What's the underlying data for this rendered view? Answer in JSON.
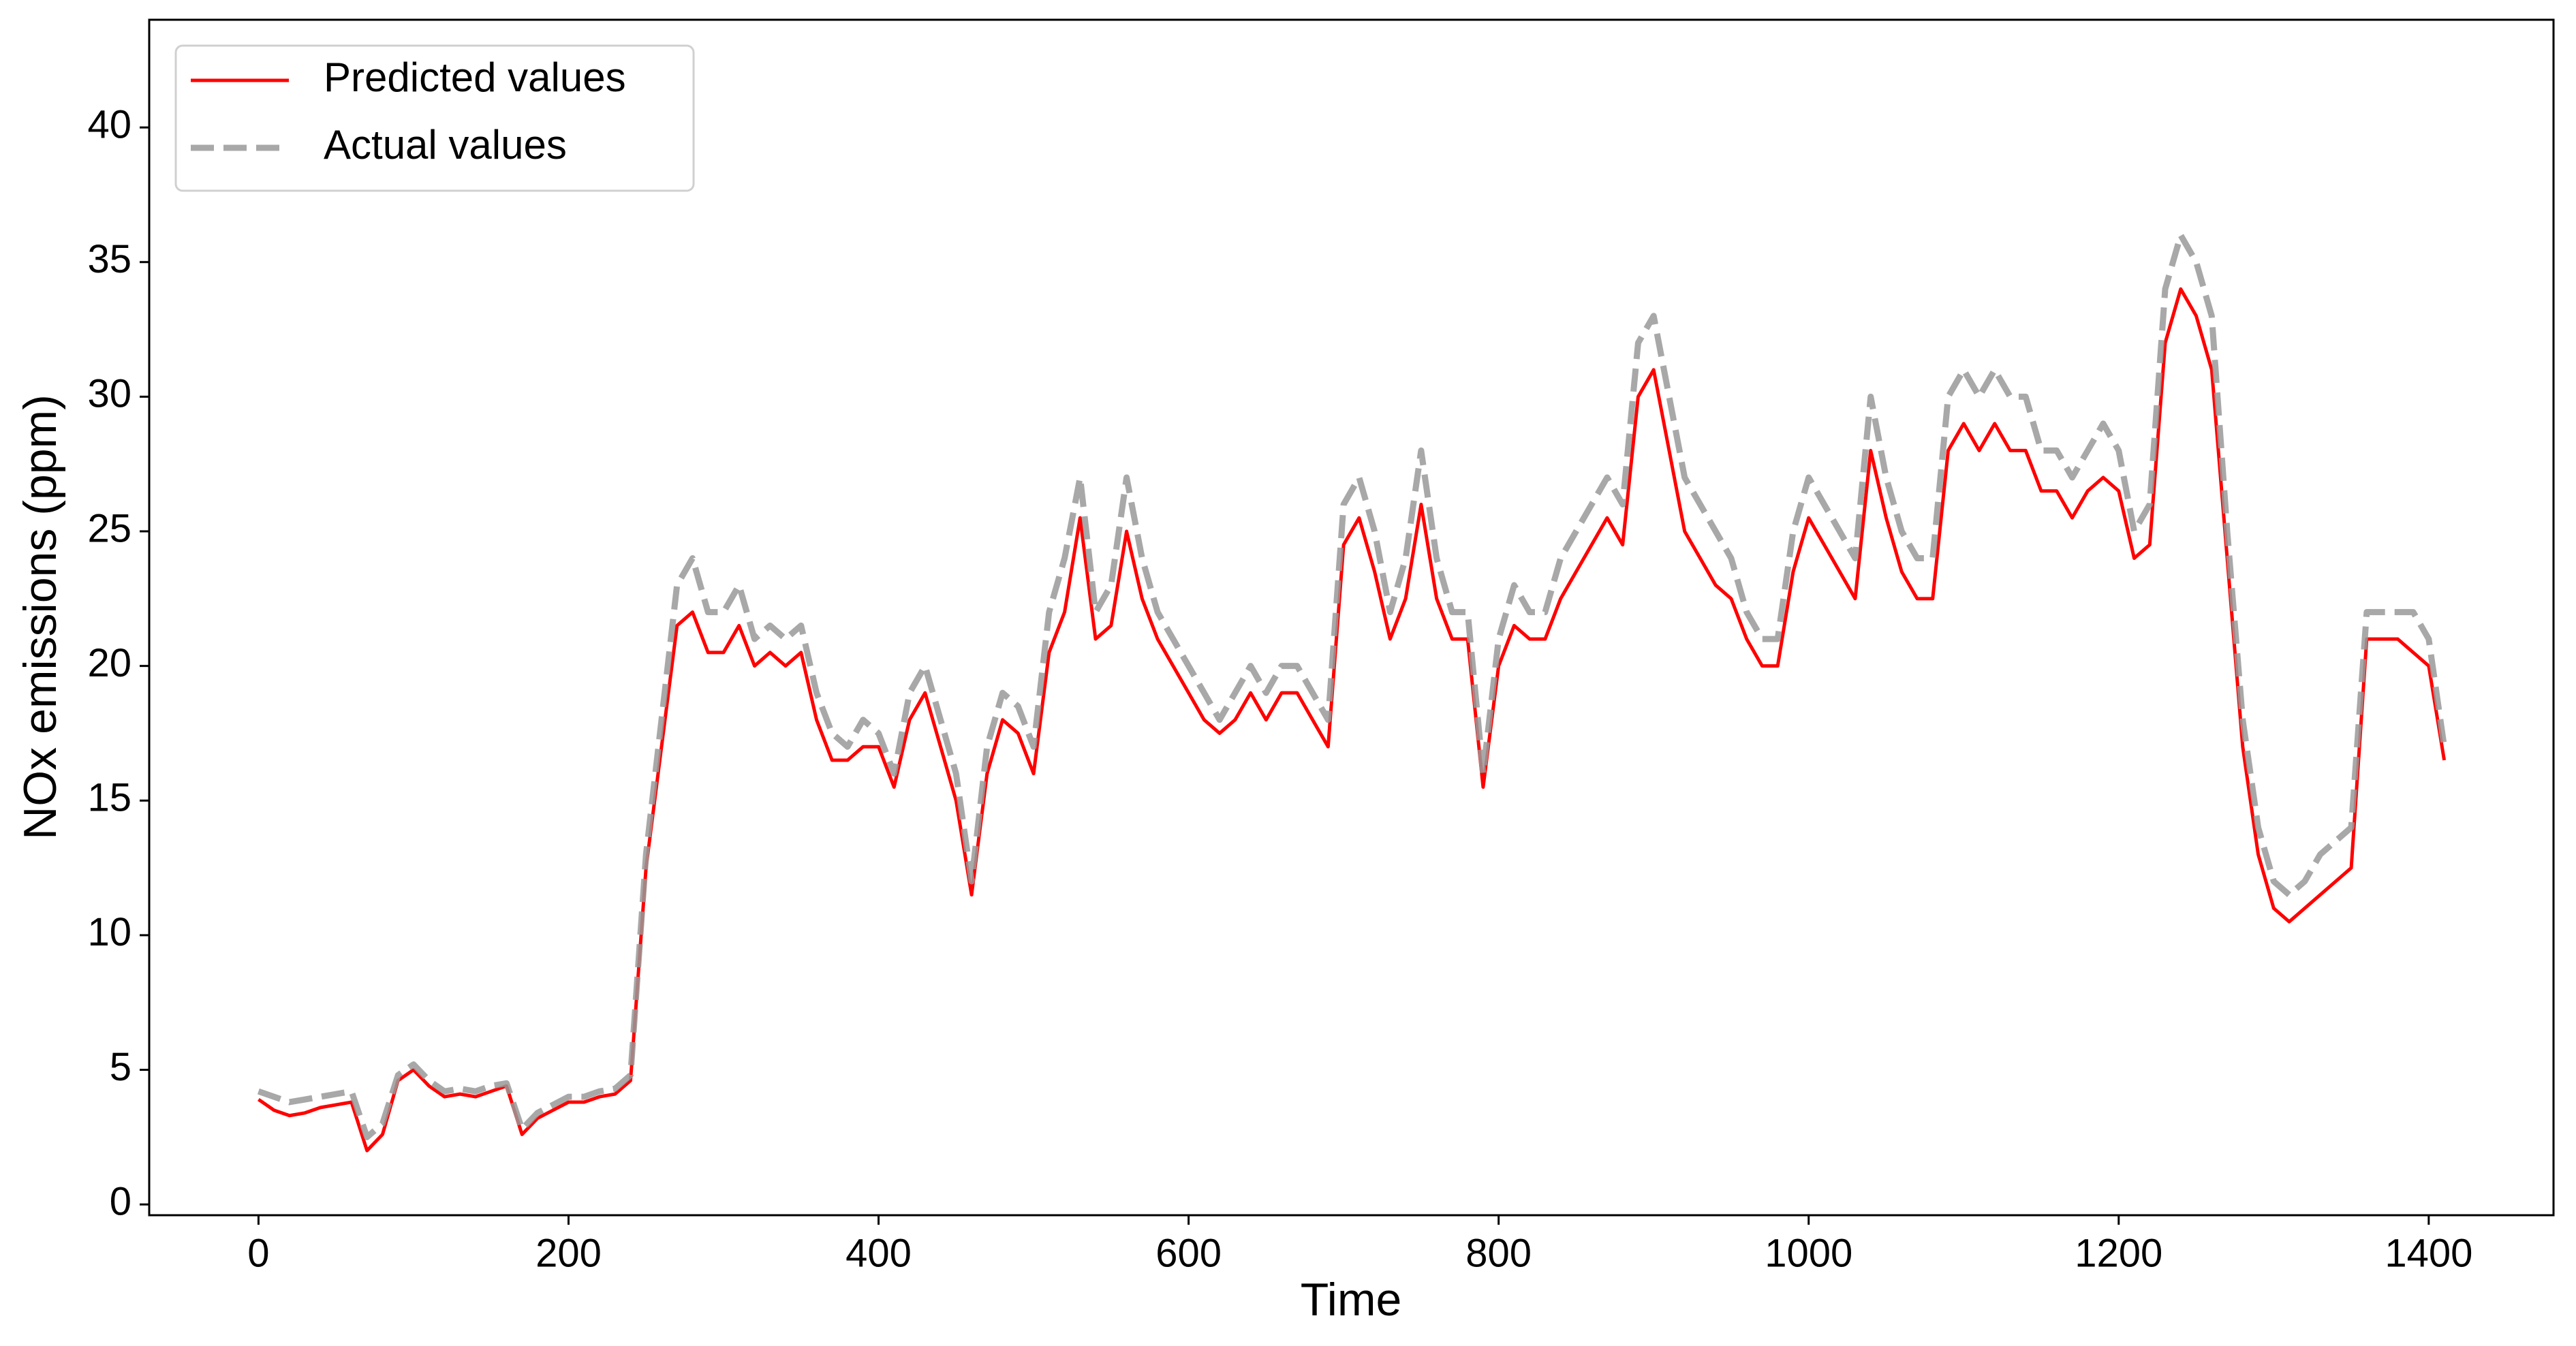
{
  "chart_data": {
    "type": "line",
    "x_label": "Time",
    "y_label": "NOx emissions (ppm)",
    "x": [
      0,
      10,
      20,
      30,
      40,
      50,
      60,
      70,
      80,
      90,
      100,
      110,
      120,
      130,
      140,
      150,
      160,
      170,
      180,
      190,
      200,
      210,
      220,
      230,
      240,
      250,
      260,
      270,
      280,
      290,
      300,
      310,
      320,
      330,
      340,
      350,
      360,
      370,
      380,
      390,
      400,
      410,
      420,
      430,
      440,
      450,
      460,
      470,
      480,
      490,
      500,
      510,
      520,
      530,
      540,
      550,
      560,
      570,
      580,
      590,
      600,
      610,
      620,
      630,
      640,
      650,
      660,
      670,
      680,
      690,
      700,
      710,
      720,
      730,
      740,
      750,
      760,
      770,
      780,
      790,
      800,
      810,
      820,
      830,
      840,
      850,
      860,
      870,
      880,
      890,
      900,
      910,
      920,
      930,
      940,
      950,
      960,
      970,
      980,
      990,
      1000,
      1010,
      1020,
      1030,
      1040,
      1050,
      1060,
      1070,
      1080,
      1090,
      1100,
      1110,
      1120,
      1130,
      1140,
      1150,
      1160,
      1170,
      1180,
      1190,
      1200,
      1210,
      1220,
      1230,
      1240,
      1250,
      1260,
      1270,
      1280,
      1290,
      1300,
      1310,
      1320,
      1330,
      1340,
      1350,
      1360,
      1370,
      1380,
      1390,
      1400,
      1410
    ],
    "series": [
      {
        "name": "Predicted values",
        "color": "#ff0000",
        "linestyle": "solid",
        "values": [
          3.9,
          3.5,
          3.3,
          3.4,
          3.6,
          3.7,
          3.8,
          2.0,
          2.6,
          4.6,
          5.0,
          4.4,
          4.0,
          4.1,
          4.0,
          4.2,
          4.4,
          2.6,
          3.2,
          3.5,
          3.8,
          3.8,
          4.0,
          4.1,
          4.6,
          12.5,
          17.0,
          21.5,
          22.0,
          20.5,
          20.5,
          21.5,
          20.0,
          20.5,
          20.0,
          20.5,
          18.0,
          16.5,
          16.5,
          17.0,
          17.0,
          15.5,
          18.0,
          19.0,
          17.0,
          15.0,
          11.5,
          16.0,
          18.0,
          17.5,
          16.0,
          20.5,
          22.0,
          25.5,
          21.0,
          21.5,
          25.0,
          22.5,
          21.0,
          20.0,
          19.0,
          18.0,
          17.5,
          18.0,
          19.0,
          18.0,
          19.0,
          19.0,
          18.0,
          17.0,
          24.5,
          25.5,
          23.5,
          21.0,
          22.5,
          26.0,
          22.5,
          21.0,
          21.0,
          15.5,
          20.0,
          21.5,
          21.0,
          21.0,
          22.5,
          23.5,
          24.5,
          25.5,
          24.5,
          30.0,
          31.0,
          28.0,
          25.0,
          24.0,
          23.0,
          22.5,
          21.0,
          20.0,
          20.0,
          23.5,
          25.5,
          24.5,
          23.5,
          22.5,
          28.0,
          25.5,
          23.5,
          22.5,
          22.5,
          28.0,
          29.0,
          28.0,
          29.0,
          28.0,
          28.0,
          26.5,
          26.5,
          25.5,
          26.5,
          27.0,
          26.5,
          24.0,
          24.5,
          32.0,
          34.0,
          33.0,
          31.0,
          24.0,
          17.0,
          13.0,
          11.0,
          10.5,
          11.0,
          11.5,
          12.0,
          12.5,
          21.0,
          21.0,
          21.0,
          20.5,
          20.0,
          16.5
        ]
      },
      {
        "name": "Actual values",
        "color": "#999999",
        "linestyle": "dashed",
        "values": [
          4.2,
          4.0,
          3.8,
          3.9,
          4.0,
          4.1,
          4.2,
          2.5,
          3.0,
          4.8,
          5.2,
          4.6,
          4.2,
          4.3,
          4.2,
          4.4,
          4.5,
          2.8,
          3.4,
          3.7,
          4.0,
          4.0,
          4.2,
          4.3,
          4.8,
          13,
          18,
          23,
          24,
          22,
          22,
          23,
          21,
          21.5,
          21,
          21.5,
          19,
          17.5,
          17,
          18,
          17.5,
          16,
          19,
          20,
          18,
          16,
          12,
          17,
          19,
          18.5,
          17,
          22,
          24,
          27,
          22,
          23,
          27,
          24,
          22,
          21,
          20,
          19,
          18,
          19,
          20,
          19,
          20,
          20,
          19,
          18,
          26,
          27,
          25,
          22,
          24,
          28,
          24,
          22,
          22,
          16,
          21,
          23,
          22,
          22,
          24,
          25,
          26,
          27,
          26,
          32,
          33,
          30,
          27,
          26,
          25,
          24,
          22,
          21,
          21,
          25,
          27,
          26,
          25,
          24,
          30,
          27,
          25,
          24,
          24,
          30,
          31,
          30,
          31,
          30,
          30,
          28,
          28,
          27,
          28,
          29,
          28,
          25,
          26,
          34,
          36,
          35,
          33,
          25,
          18,
          14,
          12,
          11.5,
          12,
          13,
          13.5,
          14,
          22,
          22,
          22,
          22,
          21,
          17
        ]
      }
    ],
    "xlim": [
      -70.5,
      1480.5
    ],
    "ylim": [
      -0.4,
      44.0
    ],
    "xticks": [
      0,
      200,
      400,
      600,
      800,
      1000,
      1200,
      1400
    ],
    "yticks": [
      0,
      5,
      10,
      15,
      20,
      25,
      30,
      35,
      40
    ],
    "grid": false,
    "legend": "upper left"
  }
}
